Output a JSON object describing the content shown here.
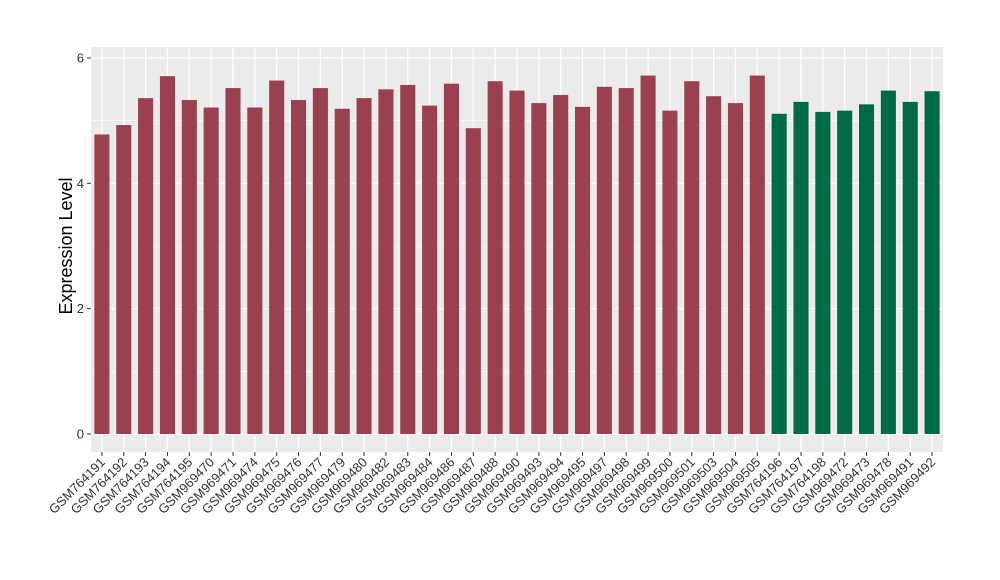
{
  "chart_data": {
    "type": "bar",
    "title": "",
    "xlabel": "",
    "ylabel": "Expression Level",
    "ylim": [
      0,
      6
    ],
    "yticks": [
      0,
      2,
      4,
      6
    ],
    "grid": true,
    "colors": {
      "group_a": "#9A4050",
      "group_b": "#006A45",
      "panel_bg": "#EBEBEB",
      "grid_line": "#FFFFFF"
    },
    "categories": [
      "GSM764191",
      "GSM764192",
      "GSM764193",
      "GSM764194",
      "GSM764195",
      "GSM969470",
      "GSM969471",
      "GSM969474",
      "GSM969475",
      "GSM969476",
      "GSM969477",
      "GSM969479",
      "GSM969480",
      "GSM969482",
      "GSM969483",
      "GSM969484",
      "GSM969486",
      "GSM969487",
      "GSM969488",
      "GSM969490",
      "GSM969493",
      "GSM969494",
      "GSM969495",
      "GSM969497",
      "GSM969498",
      "GSM969499",
      "GSM969500",
      "GSM969501",
      "GSM969503",
      "GSM969504",
      "GSM969505",
      "GSM764196",
      "GSM764197",
      "GSM764198",
      "GSM969472",
      "GSM969473",
      "GSM969478",
      "GSM969491",
      "GSM969492"
    ],
    "values": [
      4.78,
      4.93,
      5.36,
      5.71,
      5.33,
      5.21,
      5.52,
      5.21,
      5.64,
      5.33,
      5.52,
      5.19,
      5.36,
      5.5,
      5.57,
      5.24,
      5.59,
      4.88,
      5.63,
      5.48,
      5.28,
      5.41,
      5.22,
      5.54,
      5.52,
      5.72,
      5.16,
      5.63,
      5.39,
      5.28,
      5.72,
      5.11,
      5.3,
      5.14,
      5.16,
      5.26,
      5.48,
      5.3,
      5.47
    ],
    "groups": [
      "a",
      "a",
      "a",
      "a",
      "a",
      "a",
      "a",
      "a",
      "a",
      "a",
      "a",
      "a",
      "a",
      "a",
      "a",
      "a",
      "a",
      "a",
      "a",
      "a",
      "a",
      "a",
      "a",
      "a",
      "a",
      "a",
      "a",
      "a",
      "a",
      "a",
      "a",
      "b",
      "b",
      "b",
      "b",
      "b",
      "b",
      "b",
      "b"
    ]
  }
}
